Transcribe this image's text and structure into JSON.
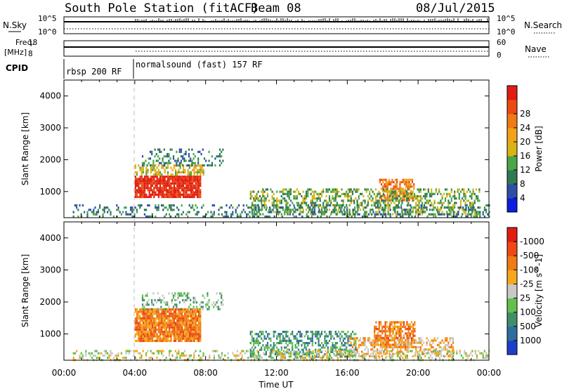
{
  "header": {
    "title": "South Pole Station (fitACF)",
    "beam": "Beam 08",
    "date": "08/Jul/2015"
  },
  "top_panels": {
    "nsky_label": "N.Sky",
    "nsky_ticks": [
      "10^5",
      "10^0"
    ],
    "nsearch_label": "N.Search",
    "nsearch_ticks": [
      "10^5",
      "10^0"
    ],
    "freq_label": "Freq.",
    "freq_unit": "[MHz]",
    "freq_ticks": [
      "18",
      "8"
    ],
    "nave_label": "Nave",
    "nave_ticks": [
      "60",
      "0"
    ],
    "cpid_label": "CPID",
    "cpid_segments": [
      {
        "label": "rbsp 200 RF",
        "start_hour": 0
      },
      {
        "label": "normalsound (fast) 157 RF",
        "start_hour": 4
      }
    ]
  },
  "chart_data": [
    {
      "type": "heatmap",
      "title": "",
      "xlabel": "",
      "ylabel": "Slant Range [km]",
      "xlim": [
        0,
        24
      ],
      "ylim": [
        180,
        4500
      ],
      "yticks": [
        1000,
        2000,
        3000,
        4000
      ],
      "colorbar": {
        "label": "Power [dB]",
        "ticks": [
          "4",
          "8",
          "12",
          "16",
          "20",
          "24",
          "28"
        ],
        "colors": [
          "#0d1de0",
          "#2c4fa8",
          "#2f7a52",
          "#4aa646",
          "#d8b414",
          "#f2a21a",
          "#f07a14",
          "#ec4a12",
          "#e01d10"
        ]
      },
      "patches": [
        {
          "x": [
            4.0,
            7.7
          ],
          "range": [
            800,
            1500
          ],
          "level": 8,
          "density": 0.9
        },
        {
          "x": [
            4.0,
            7.9
          ],
          "range": [
            1500,
            1850
          ],
          "level": 4,
          "density": 0.55
        },
        {
          "x": [
            4.4,
            9.0
          ],
          "range": [
            1850,
            2350
          ],
          "level": 2,
          "density": 0.3
        },
        {
          "x": [
            17.8,
            19.8
          ],
          "range": [
            700,
            1400
          ],
          "level": 6,
          "density": 0.7
        },
        {
          "x": [
            10.5,
            23.5
          ],
          "range": [
            300,
            1100
          ],
          "level": 3,
          "density": 0.45
        },
        {
          "x": [
            0.5,
            24
          ],
          "range": [
            180,
            600
          ],
          "level": 2,
          "density": 0.3
        }
      ]
    },
    {
      "type": "heatmap",
      "title": "",
      "xlabel": "Time UT",
      "ylabel": "Slant Range [km]",
      "xlim": [
        0,
        24
      ],
      "ylim": [
        180,
        4500
      ],
      "yticks": [
        1000,
        2000,
        3000,
        4000
      ],
      "xticks": [
        "00:00",
        "04:00",
        "08:00",
        "12:00",
        "16:00",
        "20:00",
        "00:00"
      ],
      "colorbar": {
        "label": "Velocity [m s^-1]",
        "ticks": [
          "1000",
          "500",
          "100",
          "25",
          "-25",
          "-100",
          "-500",
          "-1000"
        ],
        "colors": [
          "#1c3fc8",
          "#2f6e9e",
          "#3f8f6a",
          "#63c04a",
          "#c8c8c8",
          "#f5a91a",
          "#f07a14",
          "#ec4a12",
          "#e01d10"
        ]
      },
      "patches": [
        {
          "x": [
            4.0,
            7.7
          ],
          "range": [
            800,
            1800
          ],
          "level": 6,
          "density": 0.95
        },
        {
          "x": [
            4.4,
            9.0
          ],
          "range": [
            1800,
            2300
          ],
          "level": 3,
          "density": 0.3
        },
        {
          "x": [
            10.5,
            16.5
          ],
          "range": [
            300,
            1100
          ],
          "level": 2,
          "density": 0.5
        },
        {
          "x": [
            17.5,
            19.8
          ],
          "range": [
            600,
            1400
          ],
          "level": 6,
          "density": 0.7
        },
        {
          "x": [
            16.0,
            22.0
          ],
          "range": [
            300,
            900
          ],
          "level": 5,
          "density": 0.4
        },
        {
          "x": [
            0.5,
            24
          ],
          "range": [
            180,
            500
          ],
          "level": 4,
          "density": 0.35
        }
      ]
    }
  ]
}
